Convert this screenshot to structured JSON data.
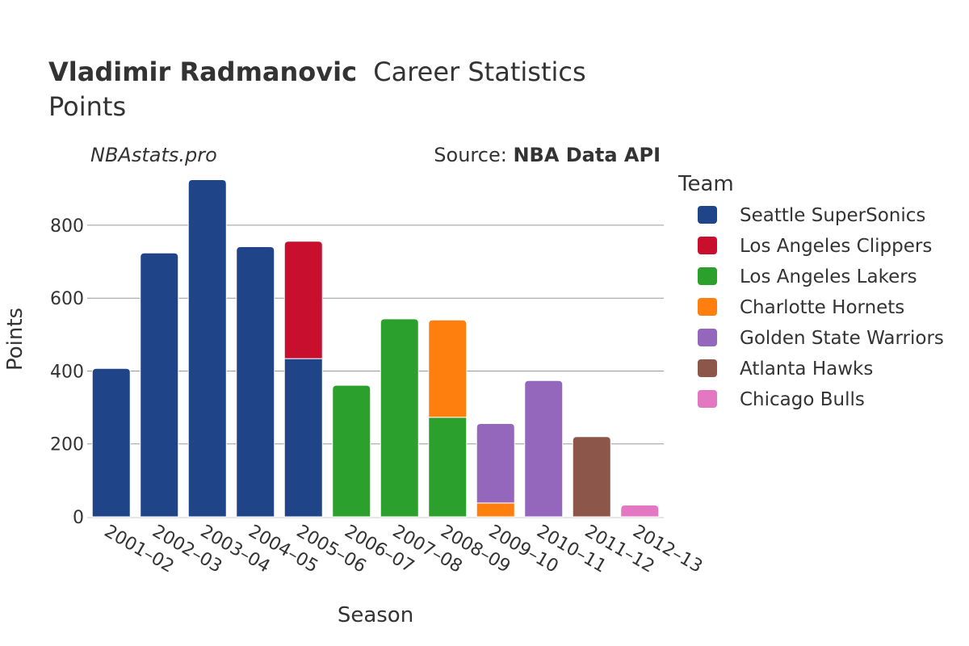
{
  "header": {
    "title_name": "Vladimir Radmanovic",
    "title_rest": "Career Statistics",
    "subtitle": "Points",
    "watermark": "NBAstats.pro",
    "source_prefix": "Source: ",
    "source_name": "NBA Data API"
  },
  "chart_data": {
    "type": "bar",
    "stacked": true,
    "xlabel": "Season",
    "ylabel": "Points",
    "ylim": [
      0,
      935
    ],
    "yticks": [
      0,
      200,
      400,
      600,
      800
    ],
    "grid": true,
    "legend_title": "Team",
    "legend_position": "right",
    "categories": [
      "2001–02",
      "2002–03",
      "2003–04",
      "2004–05",
      "2005–06",
      "2006–07",
      "2007–08",
      "2008–09",
      "2009–10",
      "2010–11",
      "2011–12",
      "2012–13"
    ],
    "series": [
      {
        "name": "Seattle SuperSonics",
        "color": "#1f4488",
        "values": [
          407,
          724,
          925,
          741,
          434,
          0,
          0,
          0,
          0,
          0,
          0,
          0
        ]
      },
      {
        "name": "Los Angeles Clippers",
        "color": "#c8102e",
        "values": [
          0,
          0,
          0,
          0,
          322,
          0,
          0,
          0,
          0,
          0,
          0,
          0
        ]
      },
      {
        "name": "Los Angeles Lakers",
        "color": "#2ca02c",
        "values": [
          0,
          0,
          0,
          0,
          0,
          361,
          543,
          273,
          0,
          0,
          0,
          0
        ]
      },
      {
        "name": "Charlotte Hornets",
        "color": "#ff7f0e",
        "values": [
          0,
          0,
          0,
          0,
          0,
          0,
          0,
          267,
          38,
          0,
          0,
          0
        ]
      },
      {
        "name": "Golden State Warriors",
        "color": "#9467bd",
        "values": [
          0,
          0,
          0,
          0,
          0,
          0,
          0,
          0,
          218,
          374,
          0,
          0
        ]
      },
      {
        "name": "Atlanta Hawks",
        "color": "#8c564b",
        "values": [
          0,
          0,
          0,
          0,
          0,
          0,
          0,
          0,
          0,
          0,
          220,
          0
        ]
      },
      {
        "name": "Chicago Bulls",
        "color": "#e377c2",
        "values": [
          0,
          0,
          0,
          0,
          0,
          0,
          0,
          0,
          0,
          0,
          0,
          32
        ]
      }
    ]
  }
}
